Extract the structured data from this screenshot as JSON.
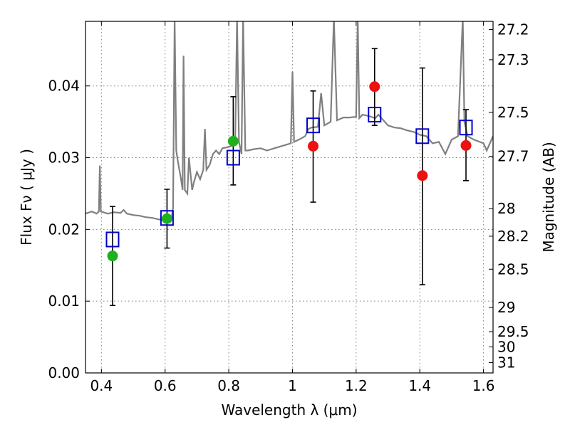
{
  "chart_data": {
    "type": "scatter",
    "xlabel": "Wavelength  λ (μm)",
    "ylabel": "Flux  Fν  ( μJy )",
    "y2label": "Magnitude (AB)",
    "xlim": [
      0.35,
      1.63
    ],
    "ylim": [
      0.0,
      0.049
    ],
    "x_ticks": [
      0.4,
      0.6,
      0.8,
      1.0,
      1.2,
      1.4,
      1.6
    ],
    "x_tick_labels": [
      "0.4",
      "0.6",
      "0.8",
      "1",
      "1.2",
      "1.4",
      "1.6"
    ],
    "y_ticks": [
      0.0,
      0.01,
      0.02,
      0.03,
      0.04
    ],
    "y_tick_labels": [
      "0.00",
      "0.01",
      "0.02",
      "0.03",
      "0.04"
    ],
    "y2_ticks": [
      27.2,
      27.3,
      27.5,
      27.7,
      28,
      28.2,
      28.5,
      29,
      29.5,
      30,
      31
    ],
    "y2_tick_labels": [
      "27.2",
      "27.3",
      "27.5",
      "27.7",
      "28",
      "28.2",
      "28.5",
      "29",
      "29.5",
      "30",
      "31"
    ],
    "grid": true,
    "colors": {
      "model": "#808080",
      "obs_green": "#1db11d",
      "obs_red": "#ee1111",
      "model_band": "#0000cc",
      "errorbar": "#000000"
    },
    "model_spectrum": [
      [
        0.35,
        0.0222
      ],
      [
        0.37,
        0.0225
      ],
      [
        0.385,
        0.0222
      ],
      [
        0.392,
        0.0225
      ],
      [
        0.395,
        0.0289
      ],
      [
        0.398,
        0.0225
      ],
      [
        0.42,
        0.0222
      ],
      [
        0.44,
        0.0224
      ],
      [
        0.46,
        0.0223
      ],
      [
        0.47,
        0.0227
      ],
      [
        0.48,
        0.0222
      ],
      [
        0.5,
        0.022
      ],
      [
        0.52,
        0.0219
      ],
      [
        0.54,
        0.0217
      ],
      [
        0.56,
        0.0216
      ],
      [
        0.58,
        0.0214
      ],
      [
        0.6,
        0.0213
      ],
      [
        0.62,
        0.0215
      ],
      [
        0.625,
        0.023
      ],
      [
        0.63,
        0.0495
      ],
      [
        0.635,
        0.031
      ],
      [
        0.64,
        0.0295
      ],
      [
        0.65,
        0.027
      ],
      [
        0.655,
        0.0255
      ],
      [
        0.658,
        0.0442
      ],
      [
        0.662,
        0.0255
      ],
      [
        0.67,
        0.025
      ],
      [
        0.675,
        0.03
      ],
      [
        0.685,
        0.0255
      ],
      [
        0.69,
        0.0265
      ],
      [
        0.7,
        0.028
      ],
      [
        0.71,
        0.027
      ],
      [
        0.72,
        0.0283
      ],
      [
        0.725,
        0.034
      ],
      [
        0.73,
        0.0283
      ],
      [
        0.74,
        0.029
      ],
      [
        0.75,
        0.0305
      ],
      [
        0.76,
        0.031
      ],
      [
        0.77,
        0.0305
      ],
      [
        0.78,
        0.0313
      ],
      [
        0.8,
        0.0315
      ],
      [
        0.82,
        0.0318
      ],
      [
        0.826,
        0.0495
      ],
      [
        0.832,
        0.0322
      ],
      [
        0.84,
        0.0305
      ],
      [
        0.845,
        0.0495
      ],
      [
        0.852,
        0.031
      ],
      [
        0.86,
        0.031
      ],
      [
        0.88,
        0.0312
      ],
      [
        0.9,
        0.0313
      ],
      [
        0.92,
        0.031
      ],
      [
        0.95,
        0.0314
      ],
      [
        0.98,
        0.0318
      ],
      [
        0.995,
        0.032
      ],
      [
        1.0,
        0.042
      ],
      [
        1.005,
        0.0322
      ],
      [
        1.02,
        0.0325
      ],
      [
        1.04,
        0.033
      ],
      [
        1.05,
        0.034
      ],
      [
        1.06,
        0.0342
      ],
      [
        1.08,
        0.0343
      ],
      [
        1.09,
        0.039
      ],
      [
        1.1,
        0.0345
      ],
      [
        1.12,
        0.035
      ],
      [
        1.13,
        0.0495
      ],
      [
        1.14,
        0.0352
      ],
      [
        1.16,
        0.0356
      ],
      [
        1.18,
        0.0356
      ],
      [
        1.2,
        0.0357
      ],
      [
        1.205,
        0.0495
      ],
      [
        1.21,
        0.0355
      ],
      [
        1.22,
        0.036
      ],
      [
        1.24,
        0.0358
      ],
      [
        1.26,
        0.0355
      ],
      [
        1.27,
        0.036
      ],
      [
        1.3,
        0.0345
      ],
      [
        1.32,
        0.0342
      ],
      [
        1.34,
        0.0341
      ],
      [
        1.36,
        0.0338
      ],
      [
        1.38,
        0.0336
      ],
      [
        1.4,
        0.0332
      ],
      [
        1.42,
        0.033
      ],
      [
        1.44,
        0.032
      ],
      [
        1.46,
        0.0322
      ],
      [
        1.48,
        0.0305
      ],
      [
        1.5,
        0.0325
      ],
      [
        1.52,
        0.033
      ],
      [
        1.535,
        0.0495
      ],
      [
        1.54,
        0.035
      ],
      [
        1.55,
        0.033
      ],
      [
        1.57,
        0.0325
      ],
      [
        1.6,
        0.032
      ],
      [
        1.61,
        0.031
      ],
      [
        1.63,
        0.033
      ]
    ],
    "observed_green": [
      {
        "x": 0.435,
        "y": 0.0163
      },
      {
        "x": 0.606,
        "y": 0.0215
      },
      {
        "x": 0.814,
        "y": 0.0323
      }
    ],
    "observed_red": [
      {
        "x": 1.065,
        "y": 0.0316
      },
      {
        "x": 1.258,
        "y": 0.0399
      },
      {
        "x": 1.408,
        "y": 0.0275
      },
      {
        "x": 1.545,
        "y": 0.0317
      }
    ],
    "error_bars": [
      {
        "x": 0.435,
        "low": 0.0094,
        "high": 0.0232
      },
      {
        "x": 0.606,
        "low": 0.0174,
        "high": 0.0256
      },
      {
        "x": 0.814,
        "low": 0.0262,
        "high": 0.0385
      },
      {
        "x": 1.065,
        "low": 0.0238,
        "high": 0.0393
      },
      {
        "x": 1.258,
        "low": 0.0345,
        "high": 0.0452
      },
      {
        "x": 1.408,
        "low": 0.0123,
        "high": 0.0425
      },
      {
        "x": 1.545,
        "low": 0.0268,
        "high": 0.0367
      }
    ],
    "model_bands": [
      {
        "x": 0.435,
        "y": 0.0186
      },
      {
        "x": 0.606,
        "y": 0.0216
      },
      {
        "x": 0.814,
        "y": 0.03
      },
      {
        "x": 1.065,
        "y": 0.0345
      },
      {
        "x": 1.258,
        "y": 0.036
      },
      {
        "x": 1.408,
        "y": 0.033
      },
      {
        "x": 1.545,
        "y": 0.0342
      }
    ]
  }
}
